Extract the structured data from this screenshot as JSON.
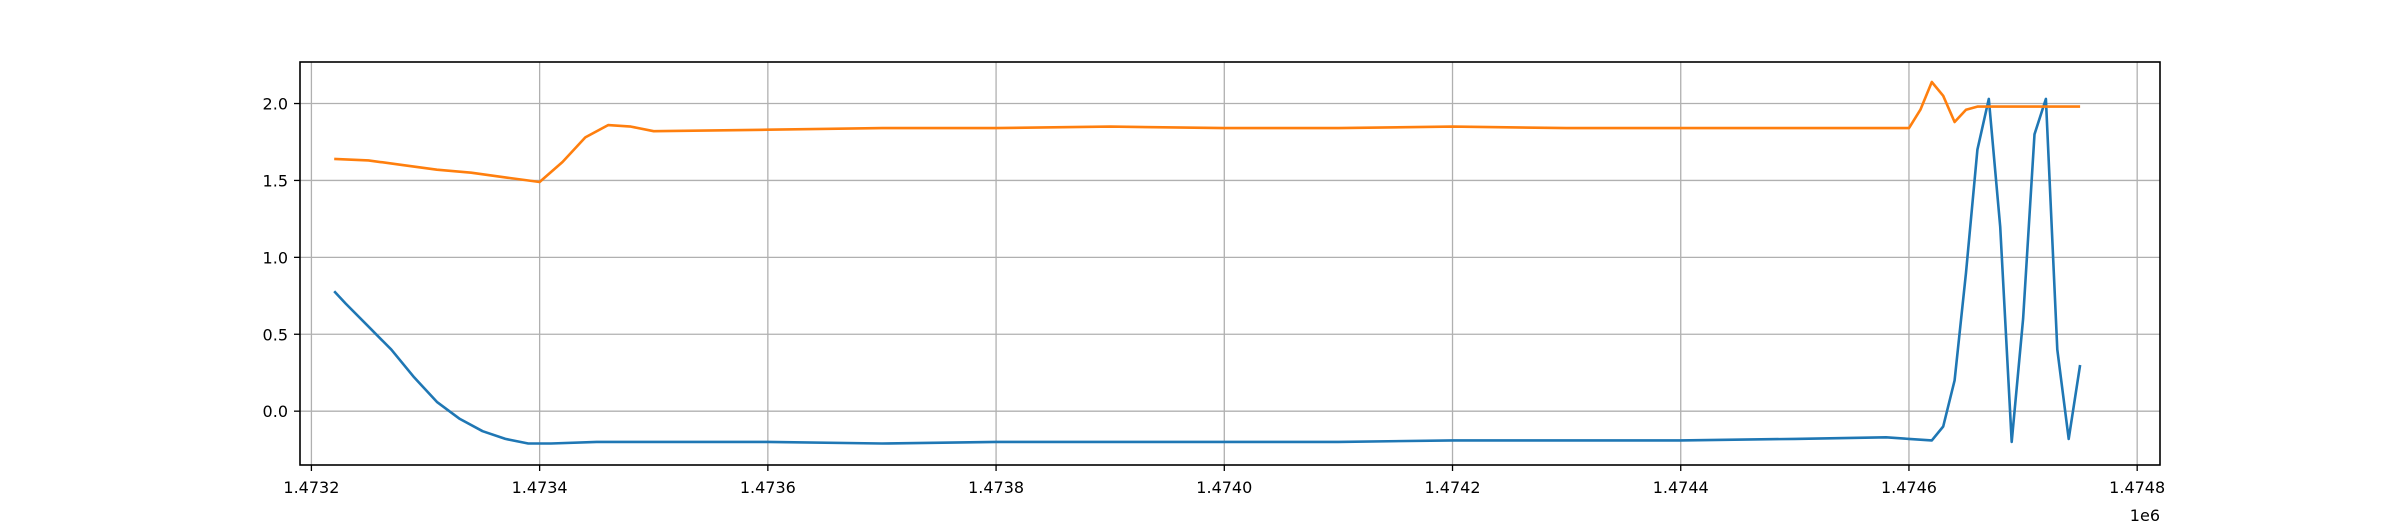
{
  "chart_data": {
    "type": "line",
    "title": "",
    "xlabel": "",
    "ylabel": "",
    "x_offset_label": "1e6",
    "xlim": [
      1.47319,
      1.47482
    ],
    "ylim": [
      -0.35,
      2.27
    ],
    "grid": true,
    "legend": "none",
    "x_ticks": [
      1.4732,
      1.4734,
      1.4736,
      1.4738,
      1.474,
      1.4742,
      1.4744,
      1.4746,
      1.4748
    ],
    "x_tick_labels": [
      "1.4732",
      "1.4734",
      "1.4736",
      "1.4738",
      "1.4740",
      "1.4742",
      "1.4744",
      "1.4746",
      "1.4748"
    ],
    "y_ticks": [
      0.0,
      0.5,
      1.0,
      1.5,
      2.0
    ],
    "y_tick_labels": [
      "0.0",
      "0.5",
      "1.0",
      "1.5",
      "2.0"
    ],
    "series": [
      {
        "color": "#1f77b4",
        "x": [
          1.47322,
          1.47323,
          1.47325,
          1.47327,
          1.47329,
          1.47331,
          1.47333,
          1.47335,
          1.47337,
          1.47339,
          1.47341,
          1.47345,
          1.4735,
          1.4736,
          1.4737,
          1.4738,
          1.4739,
          1.474,
          1.4741,
          1.4742,
          1.4743,
          1.4744,
          1.4745,
          1.47458,
          1.4746,
          1.47462,
          1.47463,
          1.47464,
          1.47465,
          1.47466,
          1.47467,
          1.47468,
          1.47469,
          1.4747,
          1.47471,
          1.47472,
          1.47473,
          1.47474,
          1.47475
        ],
        "values": [
          0.78,
          0.7,
          0.55,
          0.4,
          0.22,
          0.06,
          -0.05,
          -0.13,
          -0.18,
          -0.21,
          -0.21,
          -0.2,
          -0.2,
          -0.2,
          -0.21,
          -0.2,
          -0.2,
          -0.2,
          -0.2,
          -0.19,
          -0.19,
          -0.19,
          -0.18,
          -0.17,
          -0.18,
          -0.19,
          -0.1,
          0.2,
          0.9,
          1.7,
          2.03,
          1.2,
          -0.2,
          0.6,
          1.8,
          2.03,
          0.4,
          -0.18,
          0.3
        ]
      },
      {
        "color": "#ff7f0e",
        "x": [
          1.47322,
          1.47325,
          1.47328,
          1.47331,
          1.47334,
          1.47337,
          1.4734,
          1.47342,
          1.47344,
          1.47346,
          1.47348,
          1.4735,
          1.4736,
          1.4737,
          1.4738,
          1.4739,
          1.474,
          1.4741,
          1.4742,
          1.4743,
          1.4744,
          1.4745,
          1.4746,
          1.47461,
          1.47462,
          1.47463,
          1.47464,
          1.47465,
          1.47466,
          1.4747,
          1.47475
        ],
        "values": [
          1.64,
          1.63,
          1.6,
          1.57,
          1.55,
          1.52,
          1.49,
          1.62,
          1.78,
          1.86,
          1.85,
          1.82,
          1.83,
          1.84,
          1.84,
          1.85,
          1.84,
          1.84,
          1.85,
          1.84,
          1.84,
          1.84,
          1.84,
          1.96,
          2.14,
          2.05,
          1.88,
          1.96,
          1.98,
          1.98,
          1.98
        ]
      }
    ]
  }
}
